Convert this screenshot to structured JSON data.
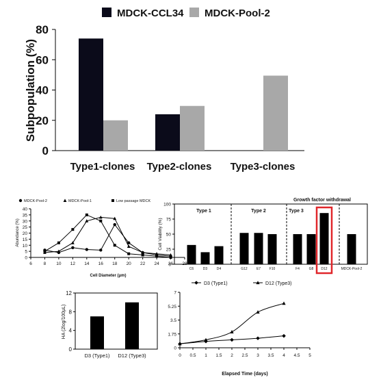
{
  "colors": {
    "ccl34": "#0b0b1a",
    "pool2": "#a8a8a8",
    "highlight": "#e0262a",
    "black": "#000000"
  },
  "chart_data": [
    {
      "type": "bar",
      "categories": [
        "Type1-clones",
        "Type2-clones",
        "Type3-clones"
      ],
      "series": [
        {
          "name": "MDCK-CCL34",
          "values": [
            74,
            24,
            0
          ]
        },
        {
          "name": "MDCK-Pool-2",
          "values": [
            20,
            29.5,
            49.5
          ]
        }
      ],
      "ylabel": "Subpopulation (%)",
      "yticks": [
        "0",
        "20",
        "40",
        "60",
        "80"
      ],
      "ylim": [
        0,
        80
      ],
      "legend": "top"
    },
    {
      "type": "line",
      "series": [
        {
          "name": "MDCK-Pool-2",
          "x": [
            8,
            10,
            12,
            14,
            16,
            18,
            20,
            22,
            24,
            26
          ],
          "y": [
            6,
            4,
            8,
            6.5,
            6,
            27,
            12,
            4,
            2,
            1
          ]
        },
        {
          "name": "MDCK-Pool-1",
          "x": [
            8,
            10,
            12,
            14,
            16,
            18,
            20,
            22,
            24,
            26
          ],
          "y": [
            4,
            5,
            12,
            30,
            33,
            32,
            9,
            4,
            3,
            2
          ]
        },
        {
          "name": "Low passage MDCK",
          "x": [
            8,
            10,
            12,
            14,
            16,
            18,
            20,
            22,
            24,
            26
          ],
          "y": [
            5,
            12,
            23,
            35,
            30,
            10,
            3,
            2,
            1,
            0
          ]
        }
      ],
      "xlabel": "Cell Diameter (μm)",
      "ylabel": "Abundance (%)",
      "xticks": [
        "6",
        "8",
        "10",
        "12",
        "14",
        "16",
        "18",
        "20",
        "22",
        "24",
        "26",
        "28"
      ],
      "yticks": [
        "0",
        "5",
        "10",
        "15",
        "20",
        "25",
        "30",
        "35",
        "40"
      ],
      "xlim": [
        6,
        28
      ],
      "ylim": [
        0,
        40
      ],
      "legend": "top"
    },
    {
      "type": "bar",
      "categories": [
        "C6",
        "D3",
        "D4",
        "G12",
        "E7",
        "F10",
        "F4",
        "G8",
        "D12",
        "MDCK-Pool-2"
      ],
      "values": [
        32,
        20,
        30,
        52,
        52,
        50,
        50,
        50,
        85,
        50
      ],
      "groups": [
        {
          "label": "Type 1"
        },
        {
          "label": "Type 2"
        },
        {
          "label": "Type 3"
        }
      ],
      "annotation": "Growth factor withdrawal",
      "highlighted": "D12",
      "ylabel": "Cell Viability (%)",
      "yticks": [
        "0",
        "25",
        "50",
        "75",
        "100"
      ],
      "ylim": [
        0,
        100
      ]
    },
    {
      "type": "bar",
      "categories": [
        "D3 (Type1)",
        "D12 (Type3)"
      ],
      "values": [
        7,
        10
      ],
      "ylabel": "HA (2log/100μL)",
      "yticks": [
        "0",
        "4",
        "8",
        "12"
      ],
      "ylim": [
        0,
        12
      ]
    },
    {
      "type": "line",
      "series": [
        {
          "name": "D3 (Type1)",
          "x": [
            0,
            1,
            2,
            3,
            4
          ],
          "y": [
            0.5,
            0.8,
            1.0,
            1.2,
            1.5
          ]
        },
        {
          "name": "D12 (Type3)",
          "x": [
            0,
            1,
            2,
            3,
            4
          ],
          "y": [
            0.5,
            1.0,
            2.0,
            4.5,
            5.6
          ]
        }
      ],
      "xlabel": "Elapsed Time (days)",
      "xticks": [
        "0",
        "0.5",
        "1",
        "1.5",
        "2",
        "2.5",
        "3",
        "3.5",
        "4",
        "4.5",
        "5"
      ],
      "yticks": [
        "0",
        "1.75",
        "3.5",
        "5.25",
        "7"
      ],
      "xlim": [
        0,
        5
      ],
      "ylim": [
        0,
        7
      ],
      "legend": "top"
    }
  ]
}
